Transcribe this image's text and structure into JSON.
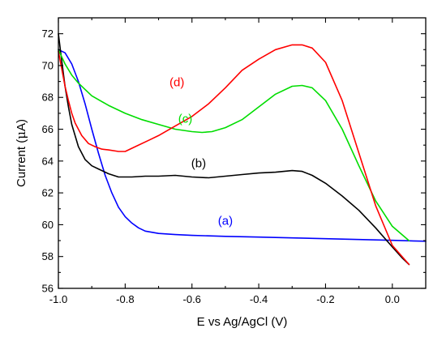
{
  "chart_data": {
    "type": "line",
    "xlabel": "E vs Ag/AgCl (V)",
    "ylabel_prefix": "Current (",
    "ylabel_mu": "μ",
    "ylabel_suffix": "A)",
    "xlim": [
      -1.0,
      0.1
    ],
    "ylim": [
      56,
      73
    ],
    "x_major_ticks": [
      -1.0,
      -0.8,
      -0.6,
      -0.4,
      -0.2,
      0.0
    ],
    "x_tick_labels": [
      "-1.0",
      "-0.8",
      "-0.6",
      "-0.4",
      "-0.2",
      "0.0"
    ],
    "y_major_ticks": [
      56,
      58,
      60,
      62,
      64,
      66,
      68,
      70,
      72
    ],
    "y_tick_labels": [
      "56",
      "58",
      "60",
      "62",
      "64",
      "66",
      "68",
      "70",
      "72"
    ],
    "grid": false,
    "series": [
      {
        "name": "(a)",
        "color": "#0000ff",
        "x": [
          -1.0,
          -0.98,
          -0.96,
          -0.94,
          -0.92,
          -0.9,
          -0.88,
          -0.86,
          -0.84,
          -0.82,
          -0.8,
          -0.78,
          -0.76,
          -0.74,
          -0.7,
          -0.65,
          -0.6,
          -0.5,
          -0.4,
          -0.3,
          -0.2,
          -0.1,
          0.0,
          0.05,
          0.1
        ],
        "y": [
          71.0,
          70.8,
          70.1,
          69.0,
          67.6,
          66.0,
          64.5,
          63.1,
          62.0,
          61.1,
          60.5,
          60.1,
          59.8,
          59.6,
          59.45,
          59.38,
          59.33,
          59.27,
          59.22,
          59.17,
          59.12,
          59.07,
          59.02,
          58.99,
          58.96
        ]
      },
      {
        "name": "(b)",
        "color": "#000000",
        "x": [
          -1.0,
          -0.99,
          -0.98,
          -0.97,
          -0.96,
          -0.94,
          -0.92,
          -0.9,
          -0.88,
          -0.85,
          -0.82,
          -0.78,
          -0.74,
          -0.7,
          -0.65,
          -0.6,
          -0.55,
          -0.5,
          -0.45,
          -0.4,
          -0.35,
          -0.3,
          -0.27,
          -0.24,
          -0.2,
          -0.15,
          -0.1,
          -0.05,
          0.0,
          0.03,
          0.05
        ],
        "y": [
          72.0,
          70.3,
          68.7,
          67.4,
          66.3,
          64.9,
          64.1,
          63.7,
          63.5,
          63.2,
          63.0,
          63.0,
          63.05,
          63.05,
          63.1,
          63.0,
          62.95,
          63.05,
          63.15,
          63.25,
          63.3,
          63.4,
          63.35,
          63.1,
          62.6,
          61.8,
          60.9,
          59.8,
          58.6,
          57.9,
          57.5
        ]
      },
      {
        "name": "(c)",
        "color": "#00dd00",
        "x": [
          -1.0,
          -0.98,
          -0.96,
          -0.94,
          -0.92,
          -0.9,
          -0.85,
          -0.8,
          -0.75,
          -0.7,
          -0.65,
          -0.6,
          -0.57,
          -0.54,
          -0.5,
          -0.45,
          -0.4,
          -0.35,
          -0.3,
          -0.27,
          -0.24,
          -0.2,
          -0.15,
          -0.1,
          -0.05,
          0.0,
          0.05
        ],
        "y": [
          71.0,
          70.1,
          69.4,
          68.9,
          68.5,
          68.1,
          67.5,
          67.0,
          66.6,
          66.3,
          66.0,
          65.85,
          65.8,
          65.85,
          66.1,
          66.6,
          67.4,
          68.2,
          68.7,
          68.75,
          68.6,
          67.8,
          66.0,
          63.7,
          61.5,
          59.9,
          59.0
        ]
      },
      {
        "name": "(d)",
        "color": "#ff0000",
        "x": [
          -1.0,
          -0.99,
          -0.98,
          -0.97,
          -0.96,
          -0.95,
          -0.93,
          -0.91,
          -0.89,
          -0.87,
          -0.85,
          -0.82,
          -0.8,
          -0.77,
          -0.73,
          -0.7,
          -0.65,
          -0.6,
          -0.55,
          -0.5,
          -0.45,
          -0.4,
          -0.35,
          -0.3,
          -0.27,
          -0.24,
          -0.2,
          -0.15,
          -0.1,
          -0.05,
          0.0,
          0.05
        ],
        "y": [
          70.9,
          69.8,
          68.7,
          67.8,
          67.0,
          66.4,
          65.6,
          65.1,
          64.9,
          64.75,
          64.7,
          64.6,
          64.6,
          64.9,
          65.3,
          65.6,
          66.2,
          66.8,
          67.6,
          68.6,
          69.7,
          70.4,
          71.0,
          71.3,
          71.3,
          71.1,
          70.2,
          67.8,
          64.5,
          61.2,
          58.7,
          57.5
        ]
      }
    ],
    "annotations": [
      {
        "text": "(a)",
        "x": -0.5,
        "y": 60.0,
        "color": "#0000ff"
      },
      {
        "text": "(b)",
        "x": -0.58,
        "y": 63.6,
        "color": "#000000"
      },
      {
        "text": "(c)",
        "x": -0.62,
        "y": 66.4,
        "color": "#00dd00"
      },
      {
        "text": "(d)",
        "x": -0.645,
        "y": 68.7,
        "color": "#ff0000"
      }
    ]
  }
}
